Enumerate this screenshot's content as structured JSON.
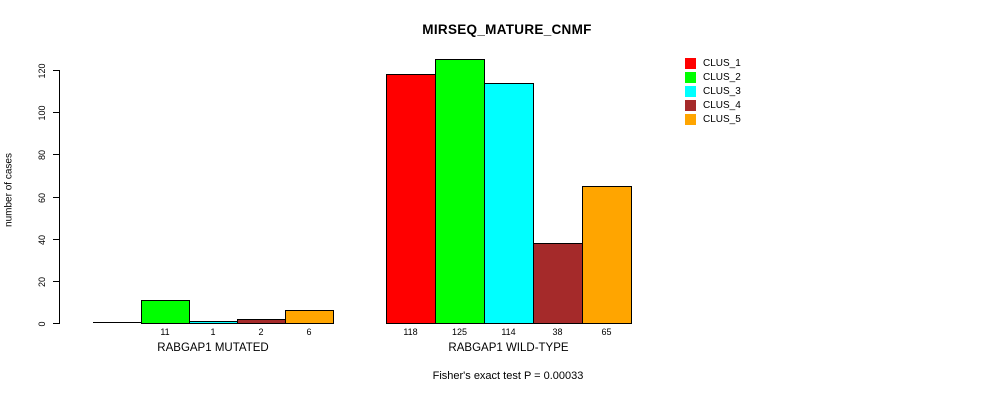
{
  "title": "MIRSEQ_MATURE_CNMF",
  "chart_data": {
    "type": "bar",
    "title": "MIRSEQ_MATURE_CNMF",
    "xlabel": "",
    "ylabel": "number of cases",
    "ylim": [
      0,
      120
    ],
    "yticks": [
      0,
      20,
      40,
      60,
      80,
      100,
      120
    ],
    "grid": false,
    "legend_position": "top-right",
    "legend": [
      {
        "label": "CLUS_1",
        "color": "#FF0000"
      },
      {
        "label": "CLUS_2",
        "color": "#00FF00"
      },
      {
        "label": "CLUS_3",
        "color": "#00FFFF"
      },
      {
        "label": "CLUS_4",
        "color": "#A52A2A"
      },
      {
        "label": "CLUS_5",
        "color": "#FFA500"
      }
    ],
    "groups": [
      {
        "label": "RABGAP1 MUTATED",
        "values": [
          0,
          11,
          1,
          2,
          6
        ],
        "value_labels": [
          "",
          "11",
          "1",
          "2",
          "6"
        ]
      },
      {
        "label": "RABGAP1 WILD-TYPE",
        "values": [
          118,
          125,
          114,
          38,
          65
        ],
        "value_labels": [
          "118",
          "125",
          "114",
          "38",
          "65"
        ]
      }
    ],
    "footer": "Fisher's exact test P = 0.00033"
  }
}
